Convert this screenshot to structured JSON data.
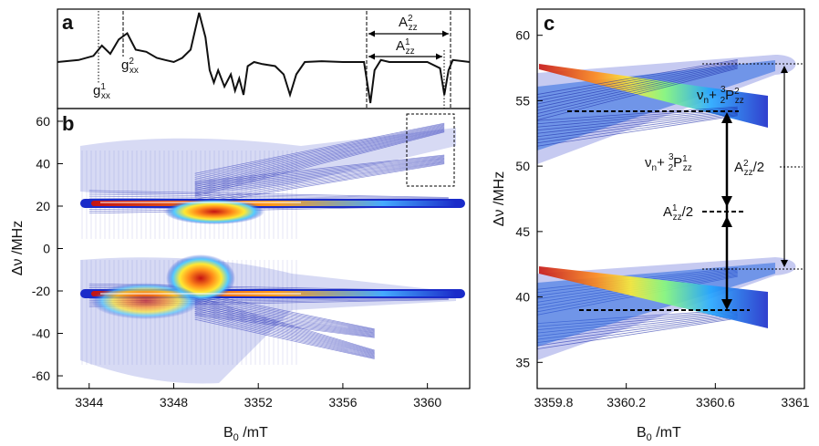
{
  "panels": {
    "a": {
      "letter": "a",
      "labels": {
        "gxx1_base": "g",
        "gxx1_sup": "1",
        "gxx1_sub": "xx",
        "gxx2_base": "g",
        "gxx2_sup": "2",
        "gxx2_sub": "xx",
        "azz2_base": "A",
        "azz2_sup": "2",
        "azz2_sub": "zz",
        "azz1_base": "A",
        "azz1_sup": "1",
        "azz1_sub": "zz"
      }
    },
    "b": {
      "letter": "b",
      "xlabel_base": "B",
      "xlabel_sub": "0",
      "xlabel_rest": " /mT",
      "ylabel": "Δν /MHz",
      "xticks": [
        "3344",
        "3348",
        "3352",
        "3356",
        "3360"
      ],
      "yticks": [
        "60",
        "40",
        "20",
        "0",
        "-20",
        "-40",
        "-60"
      ]
    },
    "c": {
      "letter": "c",
      "xlabel_base": "B",
      "xlabel_sub": "0",
      "xlabel_rest": " /mT",
      "ylabel": "Δν /MHz",
      "xticks": [
        "3359.8",
        "3360.2",
        "3360.6",
        "3361"
      ],
      "yticks": [
        "60",
        "55",
        "50",
        "45",
        "40",
        "35"
      ],
      "annotations": {
        "nu2_a": "ν",
        "nu2_n": "n",
        "nu2_plus": "+ ",
        "nu2_num": "3",
        "nu2_den": "2",
        "nu2_P": "P",
        "nu2_sup": "2",
        "nu2_sub": "zz",
        "nu1_a": "ν",
        "nu1_n": "n",
        "nu1_plus": "+ ",
        "nu1_num": "3",
        "nu1_den": "2",
        "nu1_P": "P",
        "nu1_sup": "1",
        "nu1_sub": "zz",
        "a2_base": "A",
        "a2_sup": "2",
        "a2_sub": "zz",
        "a2_rest": "/2",
        "a1_base": "A",
        "a1_sup": "1",
        "a1_sub": "zz",
        "a1_rest": "/2"
      }
    }
  },
  "chart_data": [
    {
      "type": "line",
      "panel": "a",
      "title": "",
      "xlabel": "",
      "ylabel": "",
      "xlim": [
        3342.5,
        3362
      ],
      "series": [
        {
          "x": [
            3342.5,
            3343.5,
            3344.2,
            3344.6,
            3345.0,
            3345.4,
            3345.8,
            3346.2,
            3346.7,
            3347.2,
            3347.6,
            3348.0,
            3348.4,
            3348.8,
            3349.2,
            3349.5,
            3349.7,
            3349.9,
            3350.1,
            3350.4,
            3350.7,
            3350.9,
            3351.1,
            3351.3,
            3351.5,
            3351.8,
            3352.2,
            3352.8,
            3353.2,
            3353.5,
            3353.8,
            3354.2,
            3355,
            3356,
            3357.0,
            3357.3,
            3357.5,
            3357.8,
            3358.2,
            3359,
            3360,
            3360.6,
            3360.8,
            3361.0,
            3361.2,
            3362
          ],
          "y": [
            0,
            0.05,
            0.15,
            0.4,
            0.2,
            0.55,
            0.7,
            0.3,
            0.25,
            0.1,
            0.05,
            0.0,
            0.1,
            0.3,
            1.2,
            0.6,
            -0.2,
            -0.5,
            -0.2,
            -0.6,
            -0.3,
            -0.7,
            -0.4,
            -0.8,
            -0.1,
            0.0,
            -0.05,
            -0.1,
            -0.3,
            -0.8,
            -0.3,
            0.0,
            0.02,
            0.0,
            0.0,
            -1.0,
            -0.2,
            0.05,
            0.0,
            0.0,
            0.0,
            -0.15,
            -0.8,
            -0.2,
            0.05,
            0.0
          ]
        }
      ]
    },
    {
      "type": "heatmap",
      "panel": "b",
      "title": "",
      "xlabel": "B0 /mT",
      "ylabel": "Δν /MHz",
      "xlim": [
        3342.5,
        3362
      ],
      "ylim": [
        -66,
        66
      ],
      "ridges": [
        {
          "x": [
            3344.0,
            3361.0
          ],
          "y": [
            22,
            22
          ]
        },
        {
          "x": [
            3344.0,
            3361.0
          ],
          "y": [
            -22,
            -22
          ]
        },
        {
          "x": [
            3349.0,
            3360.8
          ],
          "y": [
            30,
            57
          ]
        },
        {
          "x": [
            3349.0,
            3360.8
          ],
          "y": [
            26,
            42
          ]
        },
        {
          "x": [
            3349.0,
            3357.5
          ],
          "y": [
            -28,
            -50
          ]
        },
        {
          "x": [
            3349.0,
            3357.5
          ],
          "y": [
            -26,
            -40
          ]
        }
      ],
      "zoom_box": {
        "x": [
          3359,
          3361.3
        ],
        "y": [
          32,
          64
        ]
      }
    },
    {
      "type": "heatmap",
      "panel": "c",
      "title": "",
      "xlabel": "B0 /mT",
      "ylabel": "Δν /MHz",
      "xlim": [
        3359.8,
        3361
      ],
      "ylim": [
        33,
        62
      ],
      "ridges": [
        {
          "x": [
            3359.8,
            3360.7
          ],
          "y": [
            54.5,
            57.8
          ]
        },
        {
          "x": [
            3359.8,
            3360.7
          ],
          "y": [
            52.5,
            54.2
          ]
        },
        {
          "x": [
            3359.8,
            3360.7
          ],
          "y": [
            39.6,
            41.9
          ]
        },
        {
          "x": [
            3359.8,
            3360.7
          ],
          "y": [
            37.0,
            38.7
          ]
        }
      ],
      "dashed_levels": [
        57.8,
        54.2,
        49.7,
        46.4,
        41.9,
        38.7
      ]
    }
  ]
}
